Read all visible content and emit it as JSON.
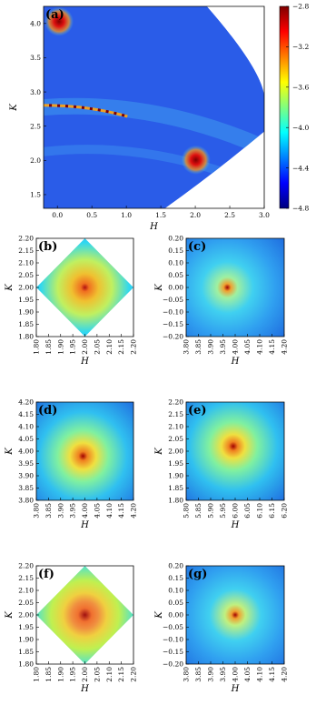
{
  "chart_data": [
    {
      "type": "heatmap",
      "title": "(a)",
      "xlabel": "H",
      "ylabel": "K",
      "xlim": [
        -0.2,
        3.0
      ],
      "ylim": [
        1.3,
        4.25
      ],
      "xticks": [
        {
          "value": 0,
          "label": "0.0"
        },
        0.5,
        {
          "value": 1,
          "label": "1.0"
        },
        1.5,
        {
          "value": 2,
          "label": "2.0"
        },
        2.5,
        {
          "value": 3,
          "label": "3.0"
        }
      ],
      "yticks": [
        1.5,
        {
          "value": 2,
          "label": "2.0"
        },
        2.5,
        {
          "value": 3,
          "label": "3.0"
        },
        3.5,
        {
          "value": 4,
          "label": "4.0"
        }
      ],
      "colorbar": {
        "lim": [
          -4.8,
          -2.8
        ],
        "ticks": [
          {
            "value": -4.8,
            "label": "−4.8"
          },
          {
            "value": -4.4,
            "label": "−4.4"
          },
          {
            "value": -4.0,
            "label": "−4.0"
          },
          {
            "value": -3.6,
            "label": "−3.6"
          },
          {
            "value": -3.2,
            "label": "−3.2"
          },
          {
            "value": -2.8,
            "label": "−2.8"
          }
        ]
      }
    },
    {
      "type": "heatmap",
      "title": "(b)",
      "xlabel": "H",
      "ylabel": "K",
      "xlim": [
        1.8,
        2.2
      ],
      "ylim": [
        1.8,
        2.2
      ],
      "xticks": [
        {
          "value": 1.8,
          "label": "1.80"
        },
        1.85,
        {
          "value": 1.9,
          "label": "1.90"
        },
        1.95,
        {
          "value": 2,
          "label": "2.00"
        },
        2.05,
        {
          "value": 2.1,
          "label": "2.10"
        },
        2.15,
        {
          "value": 2.2,
          "label": "2.20"
        }
      ],
      "yticks": [
        {
          "value": 1.8,
          "label": "1.80"
        },
        1.85,
        {
          "value": 1.9,
          "label": "1.90"
        },
        1.95,
        {
          "value": 2,
          "label": "2.00"
        },
        2.05,
        {
          "value": 2.1,
          "label": "2.10"
        },
        2.15,
        {
          "value": 2.2,
          "label": "2.20"
        }
      ]
    },
    {
      "type": "heatmap",
      "title": "(c)",
      "xlabel": "H",
      "ylabel": "K",
      "xlim": [
        3.8,
        4.2
      ],
      "ylim": [
        -0.2,
        0.2
      ],
      "xticks": [
        {
          "value": 3.8,
          "label": "3.80"
        },
        3.85,
        {
          "value": 3.9,
          "label": "3.90"
        },
        3.95,
        {
          "value": 4,
          "label": "4.00"
        },
        4.05,
        {
          "value": 4.1,
          "label": "4.10"
        },
        4.15,
        {
          "value": 4.2,
          "label": "4.20"
        }
      ],
      "yticks": [
        {
          "value": -0.2,
          "label": "−0.20"
        },
        {
          "value": -0.15,
          "label": "−0.15"
        },
        {
          "value": -0.1,
          "label": "−0.10"
        },
        {
          "value": -0.05,
          "label": "−0.05"
        },
        {
          "value": 0,
          "label": "0.00"
        },
        0.05,
        {
          "value": 0.1,
          "label": "0.10"
        },
        0.15,
        {
          "value": 0.2,
          "label": "0.20"
        }
      ]
    },
    {
      "type": "heatmap",
      "title": "(d)",
      "xlabel": "H",
      "ylabel": "K",
      "xlim": [
        3.8,
        4.2
      ],
      "ylim": [
        3.8,
        4.2
      ],
      "xticks": [
        {
          "value": 3.8,
          "label": "3.80"
        },
        3.85,
        {
          "value": 3.9,
          "label": "3.90"
        },
        3.95,
        {
          "value": 4,
          "label": "4.00"
        },
        4.05,
        {
          "value": 4.1,
          "label": "4.10"
        },
        4.15,
        {
          "value": 4.2,
          "label": "4.20"
        }
      ],
      "yticks": [
        {
          "value": 3.8,
          "label": "3.80"
        },
        3.85,
        {
          "value": 3.9,
          "label": "3.90"
        },
        3.95,
        {
          "value": 4,
          "label": "4.00"
        },
        4.05,
        {
          "value": 4.1,
          "label": "4.10"
        },
        4.15,
        {
          "value": 4.2,
          "label": "4.20"
        }
      ]
    },
    {
      "type": "heatmap",
      "title": "(e)",
      "xlabel": "H",
      "ylabel": "K",
      "xlim": [
        5.8,
        6.2
      ],
      "ylim": [
        1.8,
        2.2
      ],
      "xticks": [
        {
          "value": 5.8,
          "label": "5.80"
        },
        5.85,
        {
          "value": 5.9,
          "label": "5.90"
        },
        5.95,
        {
          "value": 6,
          "label": "6.00"
        },
        6.05,
        {
          "value": 6.1,
          "label": "6.10"
        },
        6.15,
        {
          "value": 6.2,
          "label": "6.20"
        }
      ],
      "yticks": [
        {
          "value": 1.8,
          "label": "1.80"
        },
        1.85,
        {
          "value": 1.9,
          "label": "1.90"
        },
        1.95,
        {
          "value": 2,
          "label": "2.00"
        },
        2.05,
        {
          "value": 2.1,
          "label": "2.10"
        },
        2.15,
        {
          "value": 2.2,
          "label": "2.20"
        }
      ]
    },
    {
      "type": "heatmap",
      "title": "(f)",
      "xlabel": "H",
      "ylabel": "K",
      "xlim": [
        1.8,
        2.2
      ],
      "ylim": [
        1.8,
        2.2
      ],
      "xticks": [
        {
          "value": 1.8,
          "label": "1.80"
        },
        1.85,
        {
          "value": 1.9,
          "label": "1.90"
        },
        1.95,
        {
          "value": 2,
          "label": "2.00"
        },
        2.05,
        {
          "value": 2.1,
          "label": "2.10"
        },
        2.15,
        {
          "value": 2.2,
          "label": "2.20"
        }
      ],
      "yticks": [
        {
          "value": 1.8,
          "label": "1.80"
        },
        1.85,
        {
          "value": 1.9,
          "label": "1.90"
        },
        1.95,
        {
          "value": 2,
          "label": "2.00"
        },
        2.05,
        {
          "value": 2.1,
          "label": "2.10"
        },
        2.15,
        {
          "value": 2.2,
          "label": "2.20"
        }
      ]
    },
    {
      "type": "heatmap",
      "title": "(g)",
      "xlabel": "H",
      "ylabel": "K",
      "xlim": [
        3.8,
        4.2
      ],
      "ylim": [
        -0.2,
        0.2
      ],
      "xticks": [
        {
          "value": 3.8,
          "label": "3.80"
        },
        3.85,
        {
          "value": 3.9,
          "label": "3.90"
        },
        3.95,
        {
          "value": 4,
          "label": "4.00"
        },
        4.05,
        {
          "value": 4.1,
          "label": "4.10"
        },
        4.15,
        {
          "value": 4.2,
          "label": "4.20"
        }
      ],
      "yticks": [
        {
          "value": -0.2,
          "label": "−0.20"
        },
        {
          "value": -0.15,
          "label": "−0.15"
        },
        {
          "value": -0.1,
          "label": "−0.10"
        },
        {
          "value": -0.05,
          "label": "−0.05"
        },
        {
          "value": 0,
          "label": "0.00"
        },
        0.05,
        {
          "value": 0.1,
          "label": "0.10"
        },
        0.15,
        {
          "value": 0.2,
          "label": "0.20"
        }
      ]
    }
  ]
}
